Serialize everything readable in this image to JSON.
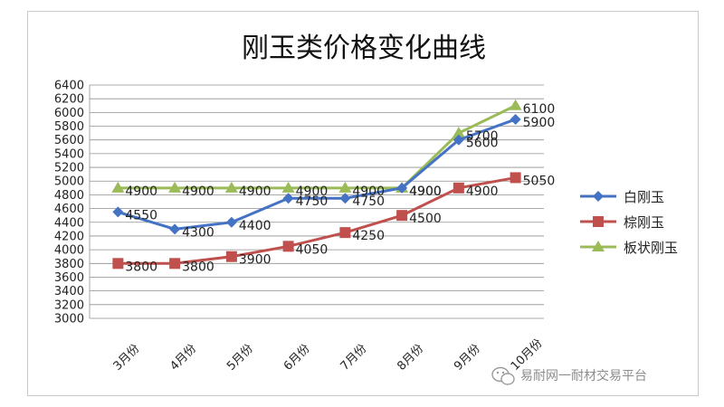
{
  "chart_data": {
    "type": "line",
    "title": "刚玉类价格变化曲线",
    "categories": [
      "3月份",
      "4月份",
      "5月份",
      "6月份",
      "7月份",
      "8月份",
      "9月份",
      "10月份"
    ],
    "series": [
      {
        "name": "白刚玉",
        "color": "#4472C4",
        "marker": "diamond",
        "values": [
          4550,
          4300,
          4400,
          4750,
          4750,
          4900,
          5600,
          5900
        ]
      },
      {
        "name": "棕刚玉",
        "color": "#C0504D",
        "marker": "square",
        "values": [
          3800,
          3800,
          3900,
          4050,
          4250,
          4500,
          4900,
          5050
        ]
      },
      {
        "name": "板状刚玉",
        "color": "#9BBB59",
        "marker": "triangle",
        "values": [
          4900,
          4900,
          4900,
          4900,
          4900,
          4900,
          5700,
          6100
        ]
      }
    ],
    "ylim": [
      3000,
      6400
    ],
    "ytick_step": 200,
    "grid": true,
    "legend": "right"
  },
  "watermark": {
    "text": "易耐网一耐材交易平台",
    "icon": "wechat-icon"
  }
}
